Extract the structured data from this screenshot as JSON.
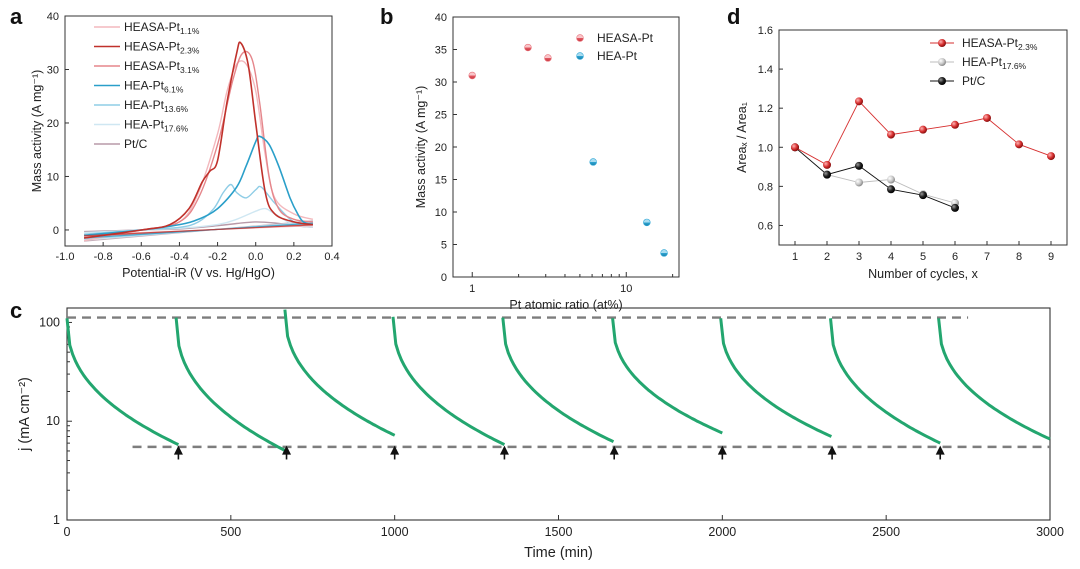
{
  "chart_data": [
    {
      "panel": "a",
      "type": "line",
      "xlabel": "Potential-iR (V vs. Hg/HgO)",
      "ylabel": "Mass activity (A mg⁻¹)",
      "xlim": [
        -1.0,
        0.4
      ],
      "ylim": [
        -3,
        40
      ],
      "xticks": [
        "-1.0",
        "-0.8",
        "-0.6",
        "-0.4",
        "-0.2",
        "0.0",
        "0.2",
        "0.4"
      ],
      "yticks": [
        "0",
        "10",
        "20",
        "30",
        "40"
      ],
      "legend_position": "top-left",
      "series": [
        {
          "name": "HEASA-Pt",
          "sub": "1.1%",
          "color": "#f3b8bd",
          "x": [
            -0.9,
            -0.6,
            -0.4,
            -0.3,
            -0.2,
            -0.15,
            -0.1,
            -0.05,
            0.0,
            0.05,
            0.1,
            0.2,
            0.3
          ],
          "y": [
            -2,
            0,
            1.5,
            7,
            18,
            26,
            31,
            31,
            26,
            14,
            6,
            3,
            2
          ]
        },
        {
          "name": "HEASA-Pt",
          "sub": "2.3%",
          "color": "#c0312b",
          "x": [
            -0.9,
            -0.6,
            -0.45,
            -0.35,
            -0.28,
            -0.24,
            -0.2,
            -0.15,
            -0.1,
            -0.08,
            -0.04,
            0.0,
            0.05,
            0.1,
            0.2,
            0.3
          ],
          "y": [
            -1.5,
            0,
            1,
            4,
            9,
            11,
            13,
            24,
            33,
            35,
            31,
            20,
            7,
            3,
            1.5,
            1
          ]
        },
        {
          "name": "HEASA-Pt",
          "sub": "3.1%",
          "color": "#e5868b",
          "x": [
            -0.9,
            -0.6,
            -0.4,
            -0.3,
            -0.2,
            -0.12,
            -0.07,
            -0.02,
            0.02,
            0.07,
            0.12,
            0.2,
            0.3
          ],
          "y": [
            -1.5,
            0,
            1.5,
            6,
            16,
            28,
            33,
            32,
            24,
            10,
            4,
            2,
            1.5
          ]
        },
        {
          "name": "HEA-Pt",
          "sub": "6.1%",
          "color": "#2a9fc9",
          "x": [
            -0.9,
            -0.6,
            -0.4,
            -0.3,
            -0.2,
            -0.1,
            -0.05,
            0.0,
            0.02,
            0.07,
            0.12,
            0.18,
            0.22,
            0.25,
            0.3
          ],
          "y": [
            -1,
            0,
            1,
            2,
            4,
            8,
            12,
            16.5,
            17.5,
            16,
            12,
            6,
            3,
            1.5,
            1
          ]
        },
        {
          "name": "HEA-Pt",
          "sub": "13.6%",
          "color": "#8fcde6",
          "x": [
            -0.9,
            -0.6,
            -0.4,
            -0.3,
            -0.22,
            -0.17,
            -0.13,
            -0.1,
            -0.05,
            0.0,
            0.03,
            0.1,
            0.2,
            0.3
          ],
          "y": [
            -0.8,
            0,
            0.5,
            1.5,
            4,
            7,
            8.5,
            7,
            6,
            7.5,
            8,
            5,
            1.5,
            1
          ]
        },
        {
          "name": "HEA-Pt",
          "sub": "17.6%",
          "color": "#cfe7f2",
          "x": [
            -0.9,
            -0.6,
            -0.4,
            -0.2,
            -0.1,
            0.0,
            0.05,
            0.1,
            0.2,
            0.3
          ],
          "y": [
            -0.5,
            0,
            0.3,
            1,
            2,
            3.5,
            4,
            3,
            1,
            0.5
          ]
        },
        {
          "name": "Pt/C",
          "sub": "",
          "color": "#b89aa8",
          "x": [
            -0.9,
            -0.6,
            -0.4,
            -0.2,
            -0.1,
            0.0,
            0.1,
            0.2,
            0.3
          ],
          "y": [
            -0.3,
            0,
            0.2,
            0.8,
            1.2,
            1.5,
            1.3,
            0.8,
            0.5
          ]
        }
      ]
    },
    {
      "panel": "b",
      "type": "scatter",
      "xlabel": "Pt atomic ratio (at%)",
      "ylabel": "Mass activity (A mg⁻¹)",
      "x_scale": "log",
      "xlim": [
        0.75,
        22
      ],
      "ylim": [
        0,
        40
      ],
      "xticks": [
        "1",
        "10"
      ],
      "yticks": [
        "0",
        "5",
        "10",
        "15",
        "20",
        "25",
        "30",
        "35",
        "40"
      ],
      "legend_position": "top-right",
      "series": [
        {
          "name": "HEASA-Pt",
          "color": "#e8747c",
          "x": [
            1.0,
            2.3,
            3.1
          ],
          "y": [
            31,
            35.3,
            33.7
          ]
        },
        {
          "name": "HEA-Pt",
          "color": "#2fa7d6",
          "x": [
            6.1,
            13.6,
            17.6
          ],
          "y": [
            17.7,
            8.4,
            3.7
          ]
        }
      ]
    },
    {
      "panel": "d",
      "type": "line",
      "xlabel": "Number of cycles, x",
      "ylabel": "Areaₓ / Area₁",
      "xlim": [
        0.5,
        9.5
      ],
      "ylim": [
        0.5,
        1.6
      ],
      "xticks": [
        "1",
        "2",
        "3",
        "4",
        "5",
        "6",
        "7",
        "8",
        "9"
      ],
      "yticks": [
        "0.6",
        "0.8",
        "1.0",
        "1.2",
        "1.4",
        "1.6"
      ],
      "legend_position": "top-right",
      "series": [
        {
          "name": "HEASA-Pt",
          "sub": "2.3%",
          "color": "#d62f2f",
          "x": [
            1,
            2,
            3,
            4,
            5,
            6,
            7,
            8,
            9
          ],
          "y": [
            1.0,
            0.91,
            1.235,
            1.065,
            1.09,
            1.115,
            1.15,
            1.015,
            0.955
          ]
        },
        {
          "name": "HEA-Pt",
          "sub": "17.6%",
          "color": "#bdbdbd",
          "x": [
            1,
            2,
            3,
            4,
            5,
            6
          ],
          "y": [
            1.0,
            0.86,
            0.82,
            0.835,
            0.76,
            0.715
          ]
        },
        {
          "name": "Pt/C",
          "sub": "",
          "color": "#111111",
          "x": [
            1,
            2,
            3,
            4,
            5,
            6
          ],
          "y": [
            1.0,
            0.86,
            0.905,
            0.785,
            0.755,
            0.69
          ]
        }
      ]
    },
    {
      "panel": "c",
      "type": "line",
      "xlabel": "Time (min)",
      "ylabel": "j (mA cm⁻²)",
      "y_scale": "log",
      "xlim": [
        0,
        3000
      ],
      "ylim": [
        1,
        140
      ],
      "xticks": [
        "0",
        "500",
        "1000",
        "1500",
        "2000",
        "2500",
        "3000"
      ],
      "yticks": [
        "1",
        "10",
        "100"
      ],
      "color": "#23a66f",
      "segments": [
        {
          "start": 0,
          "end": 340,
          "j_start": 110,
          "j_end": 5.8
        },
        {
          "start": 333,
          "end": 668,
          "j_start": 112,
          "j_end": 5.0
        },
        {
          "start": 665,
          "end": 1000,
          "j_start": 135,
          "j_end": 7.2
        },
        {
          "start": 995,
          "end": 1335,
          "j_start": 114,
          "j_end": 5.8
        },
        {
          "start": 1330,
          "end": 1668,
          "j_start": 112,
          "j_end": 6.2
        },
        {
          "start": 1665,
          "end": 2000,
          "j_start": 110,
          "j_end": 7.6
        },
        {
          "start": 1995,
          "end": 2333,
          "j_start": 110,
          "j_end": 7.0
        },
        {
          "start": 2330,
          "end": 2665,
          "j_start": 110,
          "j_end": 6.0
        },
        {
          "start": 2660,
          "end": 3000,
          "j_start": 110,
          "j_end": 6.6
        }
      ],
      "reference_lines": [
        {
          "y": 112,
          "x_from": 0,
          "x_to": 2750
        },
        {
          "y": 5.5,
          "x_from": 200,
          "x_to": 3000
        }
      ],
      "arrows_x": [
        340,
        670,
        1000,
        1335,
        1670,
        2000,
        2335,
        2665
      ]
    }
  ]
}
